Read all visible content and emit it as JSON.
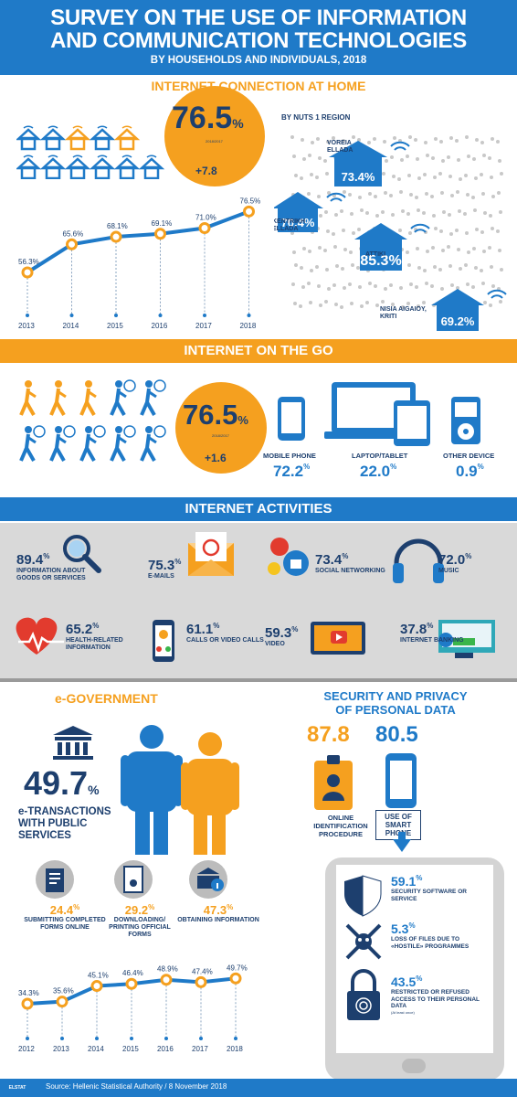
{
  "header": {
    "title_line1": "SURVEY ON THE USE OF INFORMATION",
    "title_line2": "AND COMMUNICATION TECHNOLOGIES",
    "subtitle": "BY HOUSEHOLDS AND INDIVIDUALS, 2018"
  },
  "home": {
    "title": "INTERNET CONNECTION AT HOME",
    "value": "76.5",
    "pct": "%",
    "change": "+7.8",
    "change_note": "2018/2017",
    "region_title": "BY NUTS 1 REGION",
    "regions": [
      {
        "name": "VOREIA\nELLADA",
        "value": "73.4"
      },
      {
        "name": "KENTRIKH\nELLADA",
        "value": "70.4"
      },
      {
        "name": "ATTIKI",
        "value": "85.3"
      },
      {
        "name": "NISIA AIGAIOY,\nKRITI",
        "value": "69.2"
      }
    ],
    "trend": {
      "years": [
        "2013",
        "2014",
        "2015",
        "2016",
        "2017",
        "2018"
      ],
      "values": [
        "56.3",
        "65.6",
        "68.1",
        "69.1",
        "71.0",
        "76.5"
      ]
    }
  },
  "go": {
    "title": "INTERNET ON THE GO",
    "value": "76.5",
    "pct": "%",
    "change": "+1.6",
    "change_note": "2018/2017",
    "devices": [
      {
        "label": "MOBILE PHONE",
        "value": "72.2"
      },
      {
        "label": "LAPTOP/TABLET",
        "value": "22.0"
      },
      {
        "label": "OTHER DEVICE",
        "value": "0.9"
      }
    ]
  },
  "activities": {
    "title": "INTERNET ACTIVITIES",
    "items": [
      {
        "value": "89.4",
        "label": "INFORMATION ABOUT GOODS OR SERVICES"
      },
      {
        "value": "75.3",
        "label": "E-MAILS"
      },
      {
        "value": "73.4",
        "label": "SOCIAL NETWORKING"
      },
      {
        "value": "72.0",
        "label": "MUSIC"
      },
      {
        "value": "65.2",
        "label": "HEALTH-RELATED INFORMATION"
      },
      {
        "value": "61.1",
        "label": "CALLS OR VIDEO CALLS"
      },
      {
        "value": "59.3",
        "label": "VIDEO"
      },
      {
        "value": "37.8",
        "label": "INTERNET BANKING"
      }
    ]
  },
  "egov": {
    "title": "e-GOVERNMENT",
    "value": "49.7",
    "pct": "%",
    "label": "e-TRANSACTIONS WITH PUBLIC SERVICES",
    "items": [
      {
        "value": "24.4",
        "label": "SUBMITTING COMPLETED FORMS ONLINE"
      },
      {
        "value": "29.2",
        "label": "DOWNLOADING/ PRINTING OFFICIAL FORMS"
      },
      {
        "value": "47.3",
        "label": "OBTAINING INFORMATION"
      }
    ],
    "trend": {
      "years": [
        "2012",
        "2013",
        "2014",
        "2015",
        "2016",
        "2017",
        "2018"
      ],
      "values": [
        "34.3",
        "35.6",
        "45.1",
        "46.4",
        "48.9",
        "47.4",
        "49.7"
      ]
    }
  },
  "security": {
    "title_line1": "SECURITY AND PRIVACY",
    "title_line2": "OF PERSONAL DATA",
    "online_value": "87.8",
    "online_label": "ONLINE IDENTIFICATION PROCEDURE",
    "phone_value": "80.5",
    "phone_label": "USE OF SMART PHONE",
    "items": [
      {
        "value": "59.1",
        "label": "SECURITY SOFTWARE OR SERVICE"
      },
      {
        "value": "5.3",
        "label": "LOSS OF FILES DUE TO «HOSTILE» PROGRAMMES"
      },
      {
        "value": "43.5",
        "label": "RESTRICTED OR REFUSED ACCESS TO THEIR PERSONAL DATA",
        "note": "(At least once)"
      }
    ]
  },
  "footer": {
    "source": "Source: Hellenic Statistical Authority / 8 November 2018",
    "logo": "ELSTAT"
  },
  "colors": {
    "blue": "#1f7ac8",
    "orange": "#f5a01f",
    "navy": "#1d3f6e",
    "grey": "#d9d9d9"
  }
}
